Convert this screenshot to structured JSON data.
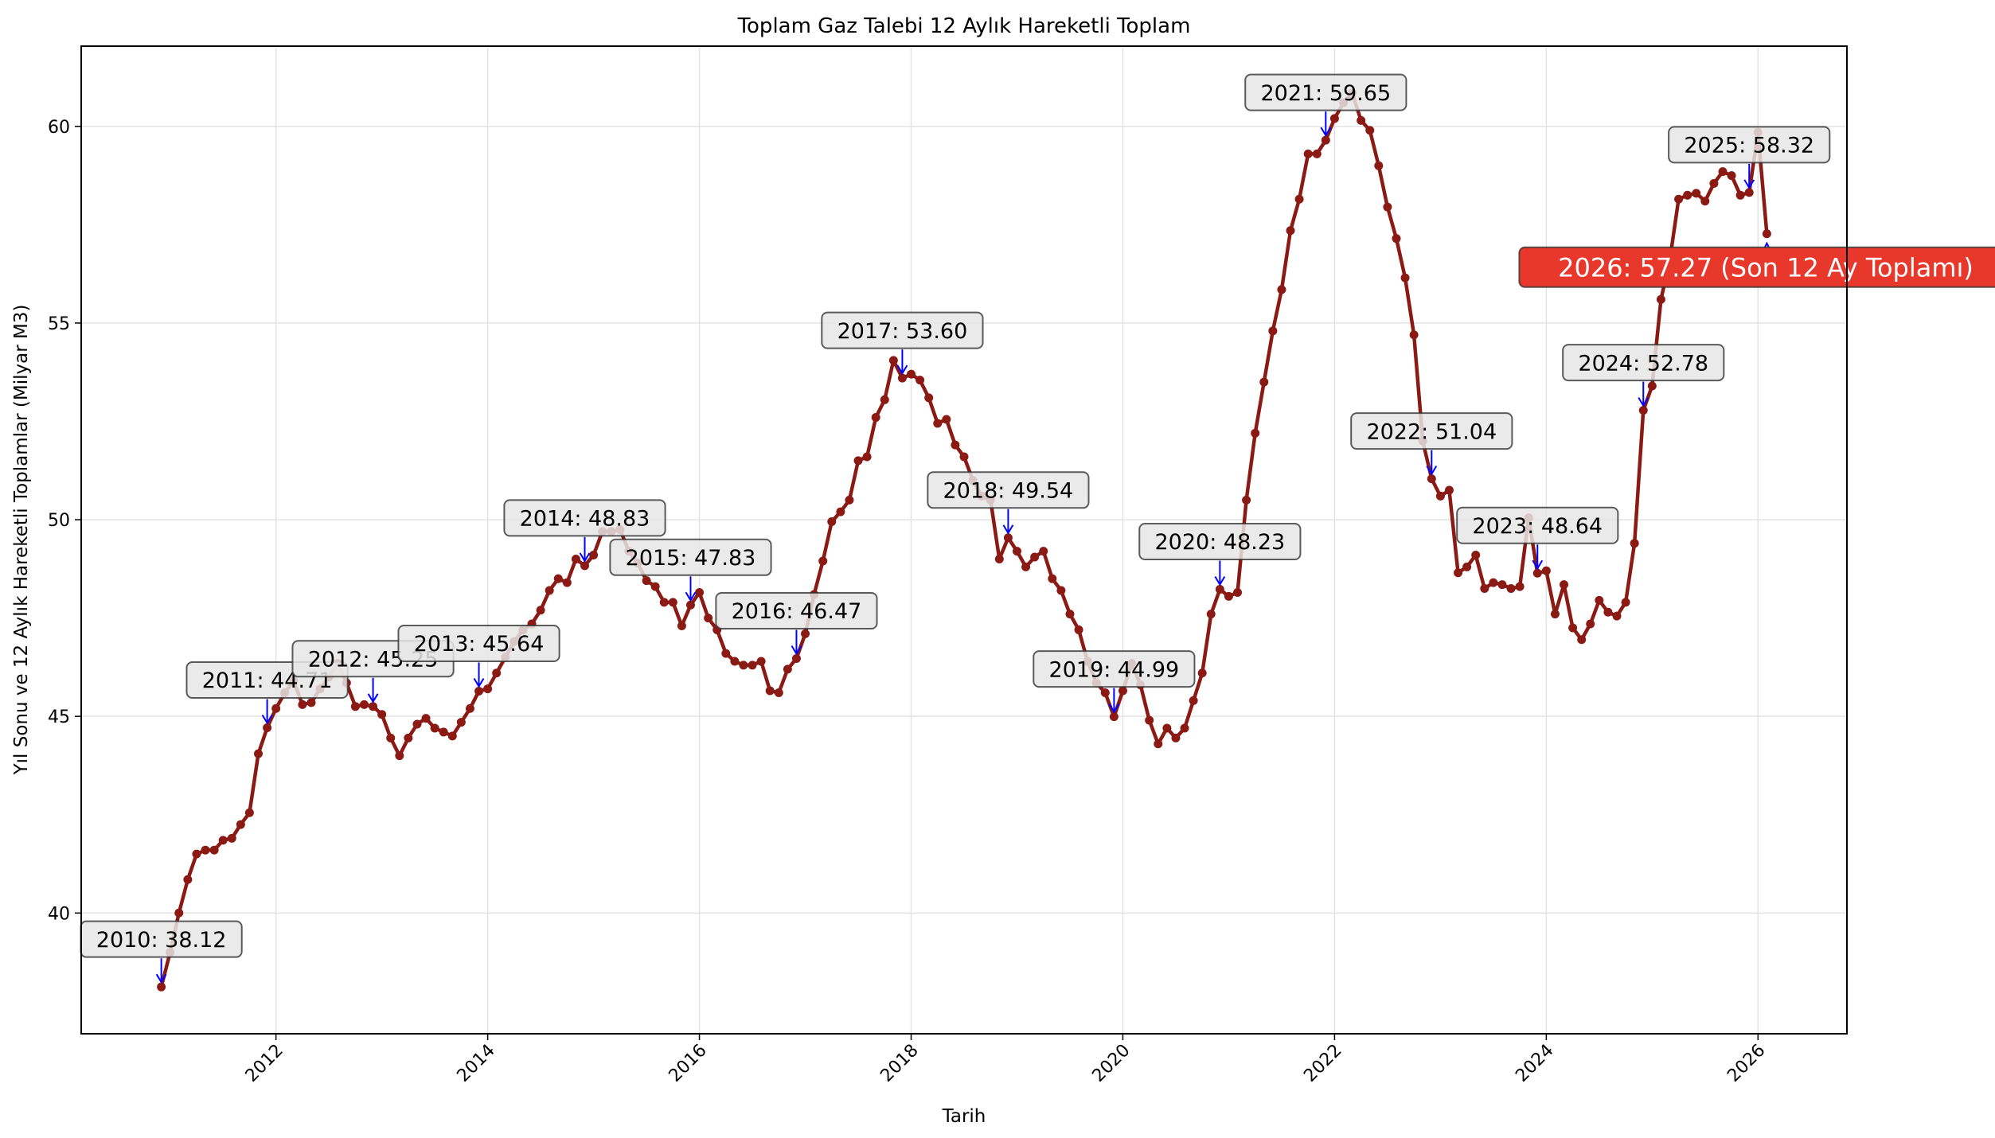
{
  "chart_data": {
    "type": "line",
    "title": "Toplam Gaz Talebi 12 Aylık Hareketli Toplam",
    "xlabel": "Tarih",
    "ylabel": "Yıl Sonu ve 12 Aylık Hareketli Toplamlar (Milyar M3)",
    "xlim": [
      2010.16,
      2026.84
    ],
    "ylim": [
      36.93,
      62.04
    ],
    "xticks": [
      "2012",
      "2014",
      "2016",
      "2018",
      "2020",
      "2022",
      "2024",
      "2026"
    ],
    "yticks": [
      40,
      45,
      50,
      55,
      60
    ],
    "grid": true,
    "colors": {
      "line": "#8b1a14",
      "arrow": "#0000ff",
      "box": "#e6e6e6",
      "highlight": "#e8372b"
    },
    "start_month": "2010-12",
    "values": [
      38.12,
      39.0,
      40.0,
      40.85,
      41.5,
      41.6,
      41.6,
      41.85,
      41.9,
      42.25,
      42.55,
      44.05,
      44.71,
      45.2,
      45.6,
      45.9,
      45.3,
      45.35,
      45.7,
      46.0,
      46.35,
      45.85,
      45.25,
      45.3,
      45.25,
      45.05,
      44.45,
      44.0,
      44.45,
      44.8,
      44.95,
      44.7,
      44.6,
      44.5,
      44.85,
      45.2,
      45.64,
      45.7,
      46.1,
      46.5,
      46.9,
      47.2,
      47.35,
      47.7,
      48.2,
      48.5,
      48.4,
      49.0,
      48.83,
      49.1,
      49.7,
      49.7,
      49.75,
      49.2,
      48.9,
      48.45,
      48.3,
      47.9,
      47.9,
      47.3,
      47.83,
      48.15,
      47.5,
      47.2,
      46.6,
      46.4,
      46.3,
      46.3,
      46.4,
      45.65,
      45.6,
      46.2,
      46.47,
      47.1,
      48.1,
      48.95,
      49.95,
      50.2,
      50.5,
      51.5,
      51.6,
      52.6,
      53.05,
      54.05,
      53.6,
      53.7,
      53.55,
      53.1,
      52.45,
      52.55,
      51.9,
      51.6,
      51.0,
      50.6,
      50.5,
      49.0,
      49.54,
      49.2,
      48.8,
      49.05,
      49.2,
      48.5,
      48.2,
      47.6,
      47.2,
      46.4,
      45.85,
      45.6,
      44.99,
      45.65,
      46.35,
      45.8,
      44.9,
      44.3,
      44.7,
      44.45,
      44.7,
      45.4,
      46.1,
      47.6,
      48.23,
      48.05,
      48.15,
      50.5,
      52.2,
      53.5,
      54.8,
      55.85,
      57.35,
      58.15,
      59.3,
      59.3,
      59.65,
      60.2,
      60.6,
      60.85,
      60.15,
      59.9,
      59.0,
      57.95,
      57.15,
      56.15,
      54.7,
      52.0,
      51.04,
      50.6,
      50.75,
      48.65,
      48.8,
      49.1,
      48.25,
      48.4,
      48.35,
      48.25,
      48.3,
      50.05,
      48.64,
      48.7,
      47.6,
      48.35,
      47.25,
      46.95,
      47.35,
      47.95,
      47.65,
      47.55,
      47.9,
      49.4,
      52.78,
      53.4,
      55.6,
      56.6,
      58.15,
      58.25,
      58.3,
      58.1,
      58.55,
      58.85,
      58.75,
      58.25,
      58.32,
      59.85,
      57.27
    ],
    "annotations": [
      {
        "date": "2010-12",
        "label": "2010: 38.12"
      },
      {
        "date": "2011-12",
        "label": "2011: 44.71"
      },
      {
        "date": "2012-12",
        "label": "2012: 45.25"
      },
      {
        "date": "2013-12",
        "label": "2013: 45.64"
      },
      {
        "date": "2014-12",
        "label": "2014: 48.83"
      },
      {
        "date": "2015-12",
        "label": "2015: 47.83"
      },
      {
        "date": "2016-12",
        "label": "2016: 46.47"
      },
      {
        "date": "2017-12",
        "label": "2017: 53.60"
      },
      {
        "date": "2018-12",
        "label": "2018: 49.54"
      },
      {
        "date": "2019-12",
        "label": "2019: 44.99"
      },
      {
        "date": "2020-12",
        "label": "2020: 48.23"
      },
      {
        "date": "2021-12",
        "label": "2021: 59.65"
      },
      {
        "date": "2022-12",
        "label": "2022: 51.04"
      },
      {
        "date": "2023-12",
        "label": "2023: 48.64"
      },
      {
        "date": "2024-12",
        "label": "2024: 52.78"
      },
      {
        "date": "2025-12",
        "label": "2025: 58.32"
      }
    ],
    "highlight": {
      "date": "2026-02",
      "label": "2026: 57.27 (Son 12 Ay Toplamı)"
    }
  }
}
